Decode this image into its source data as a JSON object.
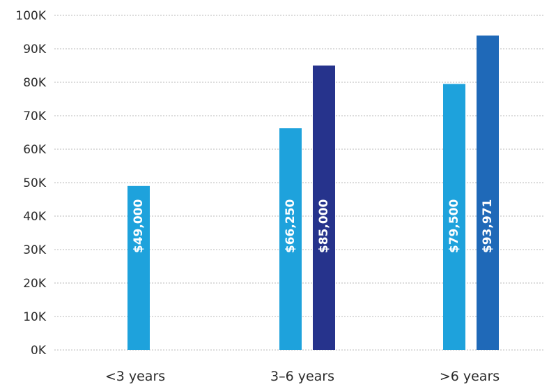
{
  "colors": {
    "light_series": "#1ea2dc",
    "dark_series": "#26338c",
    "mid_series": "#1f69b8",
    "grid": "#b9b9b9",
    "text": "#2b2b2b"
  },
  "chart_data": {
    "type": "bar",
    "categories": [
      "<3 years",
      "3–6 years",
      ">6 years"
    ],
    "ylim": [
      0,
      100000
    ],
    "yticks": [
      0,
      10000,
      20000,
      30000,
      40000,
      50000,
      60000,
      70000,
      80000,
      90000,
      100000
    ],
    "ytick_labels": [
      "0K",
      "10K",
      "20K",
      "30K",
      "40K",
      "50K",
      "60K",
      "70K",
      "80K",
      "90K",
      "100K"
    ],
    "grid": true,
    "title": "",
    "xlabel": "",
    "ylabel": "",
    "bars": [
      {
        "category": "<3 years",
        "value": 49000,
        "label": "$49,000",
        "color": "#1ea2dc"
      },
      {
        "category": "3–6 years",
        "value": 66250,
        "label": "$66,250",
        "color": "#1ea2dc"
      },
      {
        "category": "3–6 years",
        "value": 85000,
        "label": "$85,000",
        "color": "#26338c"
      },
      {
        "category": ">6 years",
        "value": 79500,
        "label": "$79,500",
        "color": "#1ea2dc"
      },
      {
        "category": ">6 years",
        "value": 93971,
        "label": "$93,971",
        "color": "#1f69b8"
      }
    ]
  }
}
